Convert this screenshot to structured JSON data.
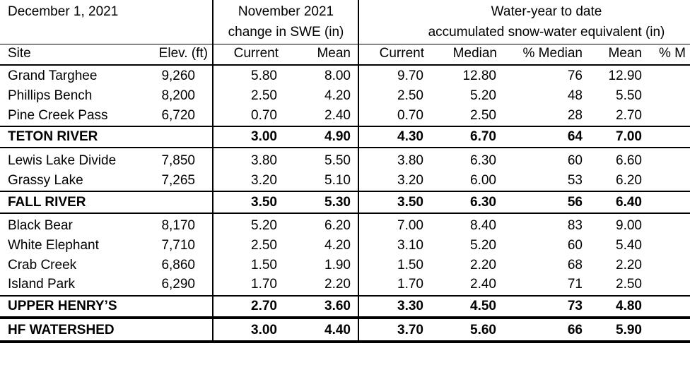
{
  "header": {
    "date": "December 1, 2021",
    "group1_line1": "November 2021",
    "group1_line2": "change in SWE (in)",
    "group2_line1": "Water-year to date",
    "group2_line2": "accumulated snow-water equivalent (in)"
  },
  "columns": [
    "Site",
    "Elev. (ft)",
    "Current",
    "Mean",
    "Current",
    "Median",
    "% Median",
    "Mean",
    "% M"
  ],
  "rows": [
    {
      "site": "Grand Targhee",
      "elev": "9,260",
      "nov_current": "5.80",
      "nov_mean": "8.00",
      "wy_current": "9.70",
      "wy_median": "12.80",
      "pct_median": "76",
      "wy_mean": "12.90",
      "bold": false
    },
    {
      "site": "Phillips Bench",
      "elev": "8,200",
      "nov_current": "2.50",
      "nov_mean": "4.20",
      "wy_current": "2.50",
      "wy_median": "5.20",
      "pct_median": "48",
      "wy_mean": "5.50",
      "bold": false
    },
    {
      "site": "Pine Creek Pass",
      "elev": "6,720",
      "nov_current": "0.70",
      "nov_mean": "2.40",
      "wy_current": "0.70",
      "wy_median": "2.50",
      "pct_median": "28",
      "wy_mean": "2.70",
      "bold": false
    },
    {
      "site": "TETON RIVER",
      "elev": "",
      "nov_current": "3.00",
      "nov_mean": "4.90",
      "wy_current": "4.30",
      "wy_median": "6.70",
      "pct_median": "64",
      "wy_mean": "7.00",
      "bold": true
    },
    {
      "site": "Lewis Lake Divide",
      "elev": "7,850",
      "nov_current": "3.80",
      "nov_mean": "5.50",
      "wy_current": "3.80",
      "wy_median": "6.30",
      "pct_median": "60",
      "wy_mean": "6.60",
      "bold": false
    },
    {
      "site": "Grassy Lake",
      "elev": "7,265",
      "nov_current": "3.20",
      "nov_mean": "5.10",
      "wy_current": "3.20",
      "wy_median": "6.00",
      "pct_median": "53",
      "wy_mean": "6.20",
      "bold": false
    },
    {
      "site": "FALL RIVER",
      "elev": "",
      "nov_current": "3.50",
      "nov_mean": "5.30",
      "wy_current": "3.50",
      "wy_median": "6.30",
      "pct_median": "56",
      "wy_mean": "6.40",
      "bold": true
    },
    {
      "site": "Black Bear",
      "elev": "8,170",
      "nov_current": "5.20",
      "nov_mean": "6.20",
      "wy_current": "7.00",
      "wy_median": "8.40",
      "pct_median": "83",
      "wy_mean": "9.00",
      "bold": false
    },
    {
      "site": "White Elephant",
      "elev": "7,710",
      "nov_current": "2.50",
      "nov_mean": "4.20",
      "wy_current": "3.10",
      "wy_median": "5.20",
      "pct_median": "60",
      "wy_mean": "5.40",
      "bold": false
    },
    {
      "site": "Crab Creek",
      "elev": "6,860",
      "nov_current": "1.50",
      "nov_mean": "1.90",
      "wy_current": "1.50",
      "wy_median": "2.20",
      "pct_median": "68",
      "wy_mean": "2.20",
      "bold": false
    },
    {
      "site": "Island Park",
      "elev": "6,290",
      "nov_current": "1.70",
      "nov_mean": "2.20",
      "wy_current": "1.70",
      "wy_median": "2.40",
      "pct_median": "71",
      "wy_mean": "2.50",
      "bold": false
    },
    {
      "site": "UPPER HENRY’S",
      "elev": "",
      "nov_current": "2.70",
      "nov_mean": "3.60",
      "wy_current": "3.30",
      "wy_median": "4.50",
      "pct_median": "73",
      "wy_mean": "4.80",
      "bold": true
    },
    {
      "site": "HF WATERSHED",
      "elev": "",
      "nov_current": "3.00",
      "nov_mean": "4.40",
      "wy_current": "3.70",
      "wy_median": "5.60",
      "pct_median": "66",
      "wy_mean": "5.90",
      "bold": true
    }
  ]
}
